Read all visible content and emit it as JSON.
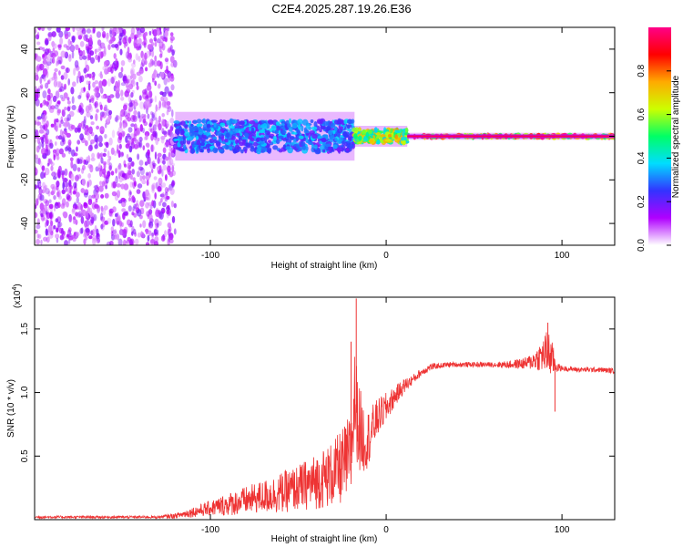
{
  "title": "C2E4.2025.287.19.26.E36",
  "chart_data": [
    {
      "type": "heatmap",
      "name": "spectrogram",
      "xlabel": "Height of straight line (km)",
      "ylabel": "Frequency (Hz)",
      "xlim": [
        -200,
        130
      ],
      "ylim": [
        -50,
        50
      ],
      "xticks": [
        -100,
        0,
        100
      ],
      "yticks": [
        -40,
        -20,
        0,
        20,
        40
      ],
      "colorbar": {
        "label": "Normalized spectral amplitude",
        "range": [
          0,
          1
        ],
        "ticks": [
          0.0,
          0.2,
          0.4,
          0.6,
          0.8
        ],
        "tick_labels": [
          "0.0",
          "0.2",
          "0.4",
          "0.6",
          "0.8"
        ],
        "colors": [
          "#ffffff",
          "#b000ff",
          "#3333ff",
          "#00ddff",
          "#00ff66",
          "#ccff00",
          "#ffaa00",
          "#ff0000",
          "#ff0088"
        ]
      },
      "regions": [
        {
          "x_from": -200,
          "x_to": -120,
          "pattern": "scattered noise over full band",
          "freq_half_width": 50,
          "amplitude": 0.15
        },
        {
          "x_from": -120,
          "x_to": -18,
          "pattern": "broadened band near 0 Hz",
          "freq_half_width": 7,
          "amplitude": 0.35
        },
        {
          "x_from": -18,
          "x_to": 12,
          "pattern": "narrowing band near 0 Hz",
          "freq_half_width": 3,
          "amplitude": 0.7
        },
        {
          "x_from": 12,
          "x_to": 130,
          "pattern": "narrow line at 0 Hz",
          "freq_half_width": 1,
          "amplitude": 0.95
        }
      ]
    },
    {
      "type": "line",
      "name": "snr",
      "xlabel": "Height of straight line (km)",
      "ylabel": "SNR (10 * v/v)",
      "y_multiplier": "(x10",
      "y_multiplier_exp": "4",
      "y_multiplier_close": ")",
      "xlim": [
        -200,
        130
      ],
      "ylim": [
        0,
        1.75
      ],
      "xticks": [
        -100,
        0,
        100
      ],
      "yticks": [
        0.5,
        1.0,
        1.5
      ],
      "ytick_labels": [
        "0.5",
        "1.0",
        "1.5"
      ],
      "color": "#ee3333",
      "series": [
        {
          "name": "SNR",
          "x": [
            -200,
            -180,
            -160,
            -140,
            -130,
            -120,
            -110,
            -100,
            -90,
            -80,
            -70,
            -60,
            -50,
            -40,
            -30,
            -25,
            -20,
            -18,
            -15,
            -12,
            -10,
            -5,
            0,
            5,
            10,
            15,
            20,
            25,
            30,
            35,
            40,
            50,
            60,
            70,
            80,
            85,
            90,
            92,
            95,
            97,
            100,
            110,
            120,
            130
          ],
          "y": [
            0.02,
            0.02,
            0.02,
            0.02,
            0.02,
            0.03,
            0.06,
            0.09,
            0.12,
            0.15,
            0.18,
            0.21,
            0.25,
            0.3,
            0.36,
            0.42,
            0.5,
            0.95,
            0.7,
            0.62,
            0.65,
            0.8,
            0.88,
            0.97,
            1.05,
            1.1,
            1.16,
            1.2,
            1.21,
            1.22,
            1.22,
            1.22,
            1.22,
            1.22,
            1.23,
            1.26,
            1.3,
            1.32,
            1.25,
            1.2,
            1.19,
            1.18,
            1.18,
            1.17
          ],
          "noise": [
            0.01,
            0.01,
            0.01,
            0.01,
            0.01,
            0.02,
            0.04,
            0.06,
            0.09,
            0.11,
            0.13,
            0.16,
            0.18,
            0.22,
            0.26,
            0.3,
            0.35,
            0.4,
            0.35,
            0.25,
            0.22,
            0.15,
            0.12,
            0.08,
            0.06,
            0.04,
            0.03,
            0.03,
            0.02,
            0.02,
            0.02,
            0.02,
            0.02,
            0.03,
            0.05,
            0.08,
            0.15,
            0.2,
            0.12,
            0.04,
            0.02,
            0.02,
            0.02,
            0.02
          ]
        }
      ],
      "peaks": [
        {
          "x": -17,
          "y": 1.74
        },
        {
          "x": -20,
          "y": 1.4
        },
        {
          "x": 92,
          "y": 1.55
        },
        {
          "x": 96,
          "y": 0.85
        }
      ]
    }
  ]
}
